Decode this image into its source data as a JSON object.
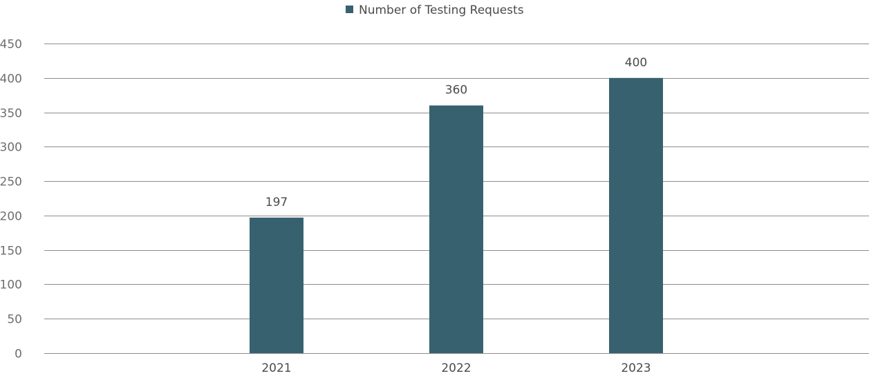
{
  "chart_data": {
    "type": "bar",
    "title": "",
    "xlabel": "",
    "ylabel": "",
    "categories": [
      "2021",
      "2022",
      "2023"
    ],
    "series": [
      {
        "name": "Number of Testing Requests",
        "values": [
          197,
          360,
          400
        ],
        "color": "#386170"
      }
    ],
    "ylim": [
      0,
      450
    ],
    "yticks": [
      0,
      50,
      100,
      150,
      200,
      250,
      300,
      350,
      400,
      450
    ],
    "grid": true,
    "legend_position": "top-center",
    "data_labels": true
  }
}
